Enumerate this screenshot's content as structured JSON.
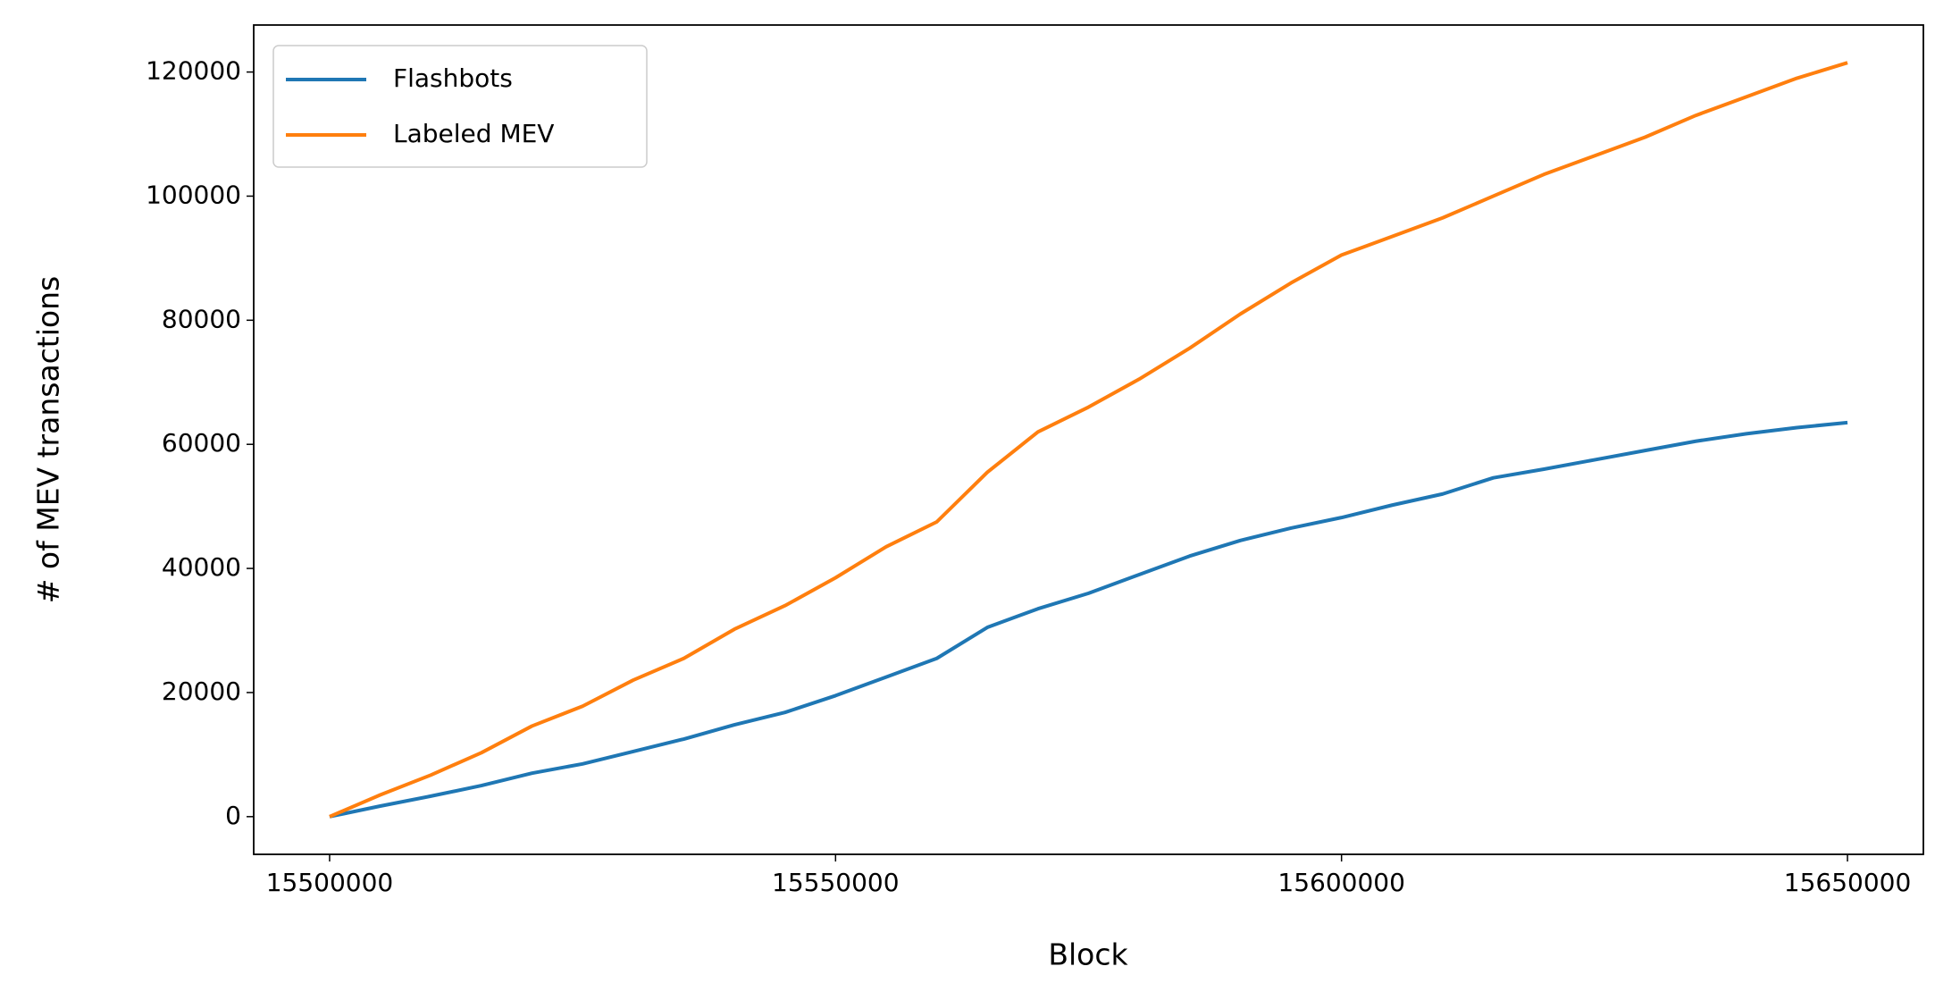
{
  "chart_data": {
    "type": "line",
    "x_label": "Block",
    "y_label": "# of MEV transactions",
    "x": [
      15500000,
      15505000,
      15510000,
      15515000,
      15520000,
      15525000,
      15530000,
      15535000,
      15540000,
      15545000,
      15550000,
      15555000,
      15560000,
      15565000,
      15570000,
      15575000,
      15580000,
      15585000,
      15590000,
      15595000,
      15600000,
      15605000,
      15610000,
      15615000,
      15620000,
      15625000,
      15630000,
      15635000,
      15640000,
      15645000,
      15650000
    ],
    "series": [
      {
        "name": "Flashbots",
        "color": "#1f77b4",
        "values": [
          0,
          1700,
          3300,
          5000,
          7000,
          8500,
          10500,
          12500,
          14800,
          16800,
          19500,
          22500,
          25500,
          30500,
          33500,
          36000,
          39000,
          42000,
          44500,
          46500,
          48200,
          50200,
          52000,
          54600,
          56000,
          57500,
          59000,
          60500,
          61700,
          62700,
          63500
        ]
      },
      {
        "name": "Labeled MEV",
        "color": "#ff7f0e",
        "values": [
          0,
          3500,
          6700,
          10300,
          14600,
          17800,
          22000,
          25500,
          30200,
          34000,
          38500,
          43500,
          47500,
          55500,
          62000,
          66000,
          70500,
          75500,
          81000,
          86000,
          90500,
          93500,
          96500,
          100000,
          103500,
          106500,
          109500,
          113000,
          116000,
          119000,
          121500
        ]
      }
    ],
    "xlim": [
      15492500,
      15657500
    ],
    "xticks": [
      15500000,
      15550000,
      15600000,
      15650000
    ],
    "ylim": [
      -6075,
      127575
    ],
    "yticks": [
      0,
      20000,
      40000,
      60000,
      80000,
      100000,
      120000
    ],
    "grid": false,
    "legend": "upper left"
  }
}
